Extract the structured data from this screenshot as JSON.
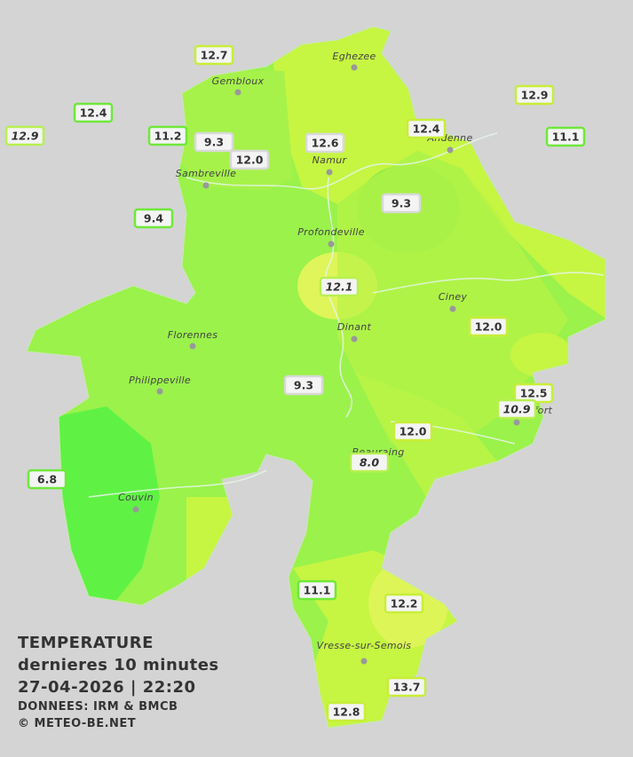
{
  "legend": {
    "title": "TEMPERATURE",
    "subtitle": "dernieres 10 minutes",
    "timestamp": "27-04-2026  |  22:20",
    "source": "DONNEES: IRM & BMCB",
    "copyright": "© METEO-BE.NET"
  },
  "cities": [
    "Eghezee",
    "Gembloux",
    "Sambreville",
    "Namur",
    "Andenne",
    "Profondeville",
    "Ciney",
    "Dinant",
    "Florennes",
    "Philippeville",
    "Couvin",
    "Beauraing",
    "Rochefort",
    "Vresse-sur-Semois"
  ],
  "stations": [
    "12.7",
    "12.4",
    "12.9",
    "11.2",
    "9.3",
    "12.0",
    "12.6",
    "12.4",
    "12.9",
    "11.1",
    "9.4",
    "9.3",
    "12.1",
    "12.0",
    "9.3",
    "12.5",
    "10.9",
    "12.0",
    "8.0",
    "6.8",
    "11.1",
    "12.2",
    "13.7",
    "12.8"
  ]
}
